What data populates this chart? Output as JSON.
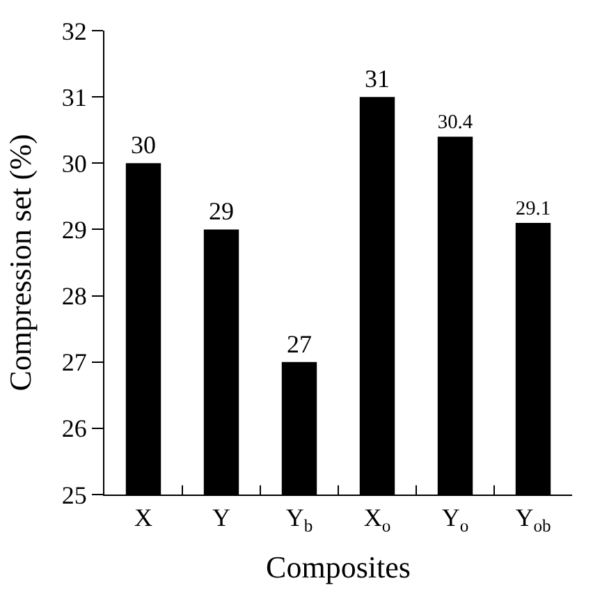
{
  "chart_data": {
    "type": "bar",
    "categories": [
      "X",
      "Y",
      "Y$_{b}$",
      "X$_{o}$",
      "Y$_{o}$",
      "Y$_{ob}$"
    ],
    "values": [
      30,
      29,
      27,
      31,
      30.4,
      29.1
    ],
    "color": "#000000",
    "xlabel": "Composites",
    "ylabel": "Compression set (%)",
    "ylim": [
      25,
      32
    ],
    "yticks": [
      25,
      26,
      27,
      28,
      29,
      30,
      31,
      32
    ],
    "data_labels": true
  }
}
